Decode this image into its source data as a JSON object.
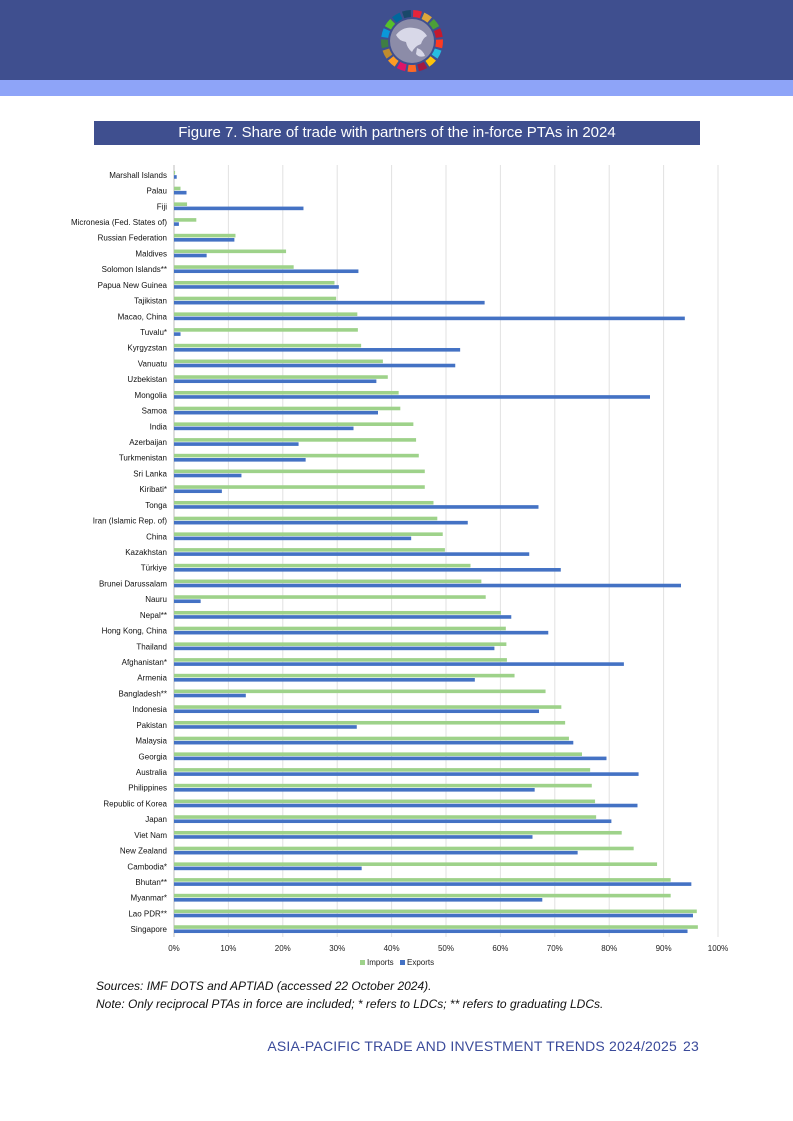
{
  "figure_title": "Figure 7. Share of trade with partners of the in-force PTAs in 2024",
  "sources": "Sources: IMF DOTS and APTIAD (accessed 22 October 2024).",
  "note": "Note: Only reciprocal PTAs in force are included; * refers to LDCs; ** refers to graduating LDCs.",
  "footer": {
    "text": "ASIA-PACIFIC TRADE AND INVESTMENT TRENDS 2024/2025",
    "page": "23"
  },
  "colors": {
    "header": "#3f4f8f",
    "stripe": "#8ea4f8",
    "imports": "#9ed28a",
    "exports": "#4472c4",
    "footer_text": "#3a4a9a"
  },
  "logo": {
    "icon": "globe-sdg-wheel-icon"
  },
  "chart_data": {
    "type": "bar",
    "orientation": "horizontal",
    "title": "",
    "xlabel": "",
    "ylabel": "",
    "xlim": [
      0,
      100
    ],
    "x_ticks": [
      "0%",
      "10%",
      "20%",
      "30%",
      "40%",
      "50%",
      "60%",
      "70%",
      "80%",
      "90%",
      "100%"
    ],
    "grid": true,
    "legend_position": "bottom",
    "categories": [
      "Marshall Islands",
      "Palau",
      "Fiji",
      "Micronesia (Fed. States of)",
      "Russian Federation",
      "Maldives",
      "Solomon Islands**",
      "Papua New Guinea",
      "Tajikistan",
      "Macao, China",
      "Tuvalu*",
      "Kyrgyzstan",
      "Vanuatu",
      "Uzbekistan",
      "Mongolia",
      "Samoa",
      "India",
      "Azerbaijan",
      "Turkmenistan",
      "Sri Lanka",
      "Kiribati*",
      "Tonga",
      "Iran (Islamic Rep. of)",
      "China",
      "Kazakhstan",
      "Türkiye",
      "Brunei Darussalam",
      "Nauru",
      "Nepal**",
      "Hong Kong, China",
      "Thailand",
      "Afghanistan*",
      "Armenia",
      "Bangladesh**",
      "Indonesia",
      "Pakistan",
      "Malaysia",
      "Georgia",
      "Australia",
      "Philippines",
      "Republic of Korea",
      "Japan",
      "Viet Nam",
      "New Zealand",
      "Cambodia*",
      "Bhutan**",
      "Myanmar*",
      "Lao PDR**",
      "Singapore"
    ],
    "series": [
      {
        "name": "Imports",
        "values": [
          0.2,
          1.2,
          2.4,
          4.1,
          11.3,
          20.6,
          22.0,
          29.5,
          29.8,
          33.7,
          33.8,
          34.4,
          38.4,
          39.3,
          41.3,
          41.6,
          44.0,
          44.5,
          45.0,
          46.1,
          46.1,
          47.7,
          48.4,
          49.4,
          49.8,
          54.5,
          56.5,
          57.3,
          60.1,
          61.0,
          61.1,
          61.2,
          62.6,
          68.3,
          71.2,
          71.9,
          72.6,
          75.0,
          76.5,
          76.8,
          77.4,
          77.6,
          82.3,
          84.5,
          88.8,
          91.3,
          91.3,
          96.1,
          96.3
        ]
      },
      {
        "name": "Exports",
        "values": [
          0.5,
          2.3,
          23.8,
          0.9,
          11.1,
          6.0,
          33.9,
          30.3,
          57.1,
          93.9,
          1.2,
          52.6,
          51.7,
          37.2,
          87.5,
          37.5,
          33.0,
          22.9,
          24.2,
          12.4,
          8.8,
          67.0,
          54.0,
          43.6,
          65.3,
          71.1,
          93.2,
          4.9,
          62.0,
          68.8,
          58.9,
          82.7,
          55.3,
          13.2,
          67.1,
          33.6,
          73.4,
          79.5,
          85.4,
          66.3,
          85.2,
          80.4,
          65.9,
          74.2,
          34.5,
          95.1,
          67.7,
          95.4,
          94.4
        ]
      }
    ]
  }
}
